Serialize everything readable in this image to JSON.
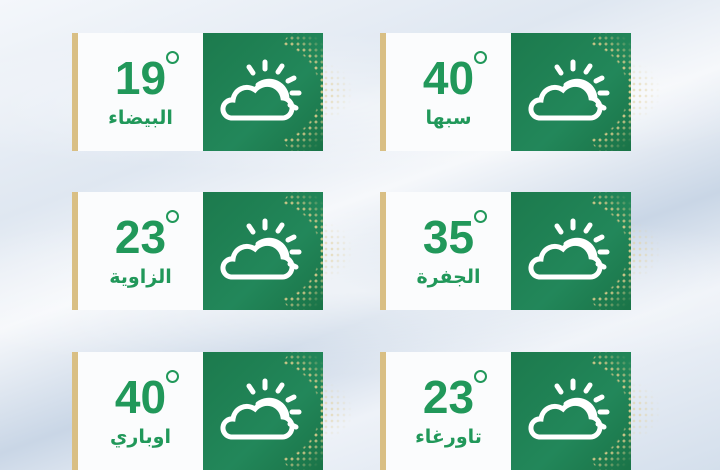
{
  "cards": [
    {
      "city": "البيضاء",
      "temp": "19",
      "icon": "partly-cloudy-icon"
    },
    {
      "city": "سبها",
      "temp": "40",
      "icon": "partly-cloudy-icon"
    },
    {
      "city": "الزاوية",
      "temp": "23",
      "icon": "partly-cloudy-icon"
    },
    {
      "city": "الجفرة",
      "temp": "35",
      "icon": "partly-cloudy-icon"
    },
    {
      "city": "اوباري",
      "temp": "40",
      "icon": "partly-cloudy-icon"
    },
    {
      "city": "تاورغاء",
      "temp": "23",
      "icon": "partly-cloudy-icon"
    }
  ],
  "colors": {
    "green": "#1e7d4f",
    "text_green": "#21985a",
    "gold": "#d9bf84"
  }
}
